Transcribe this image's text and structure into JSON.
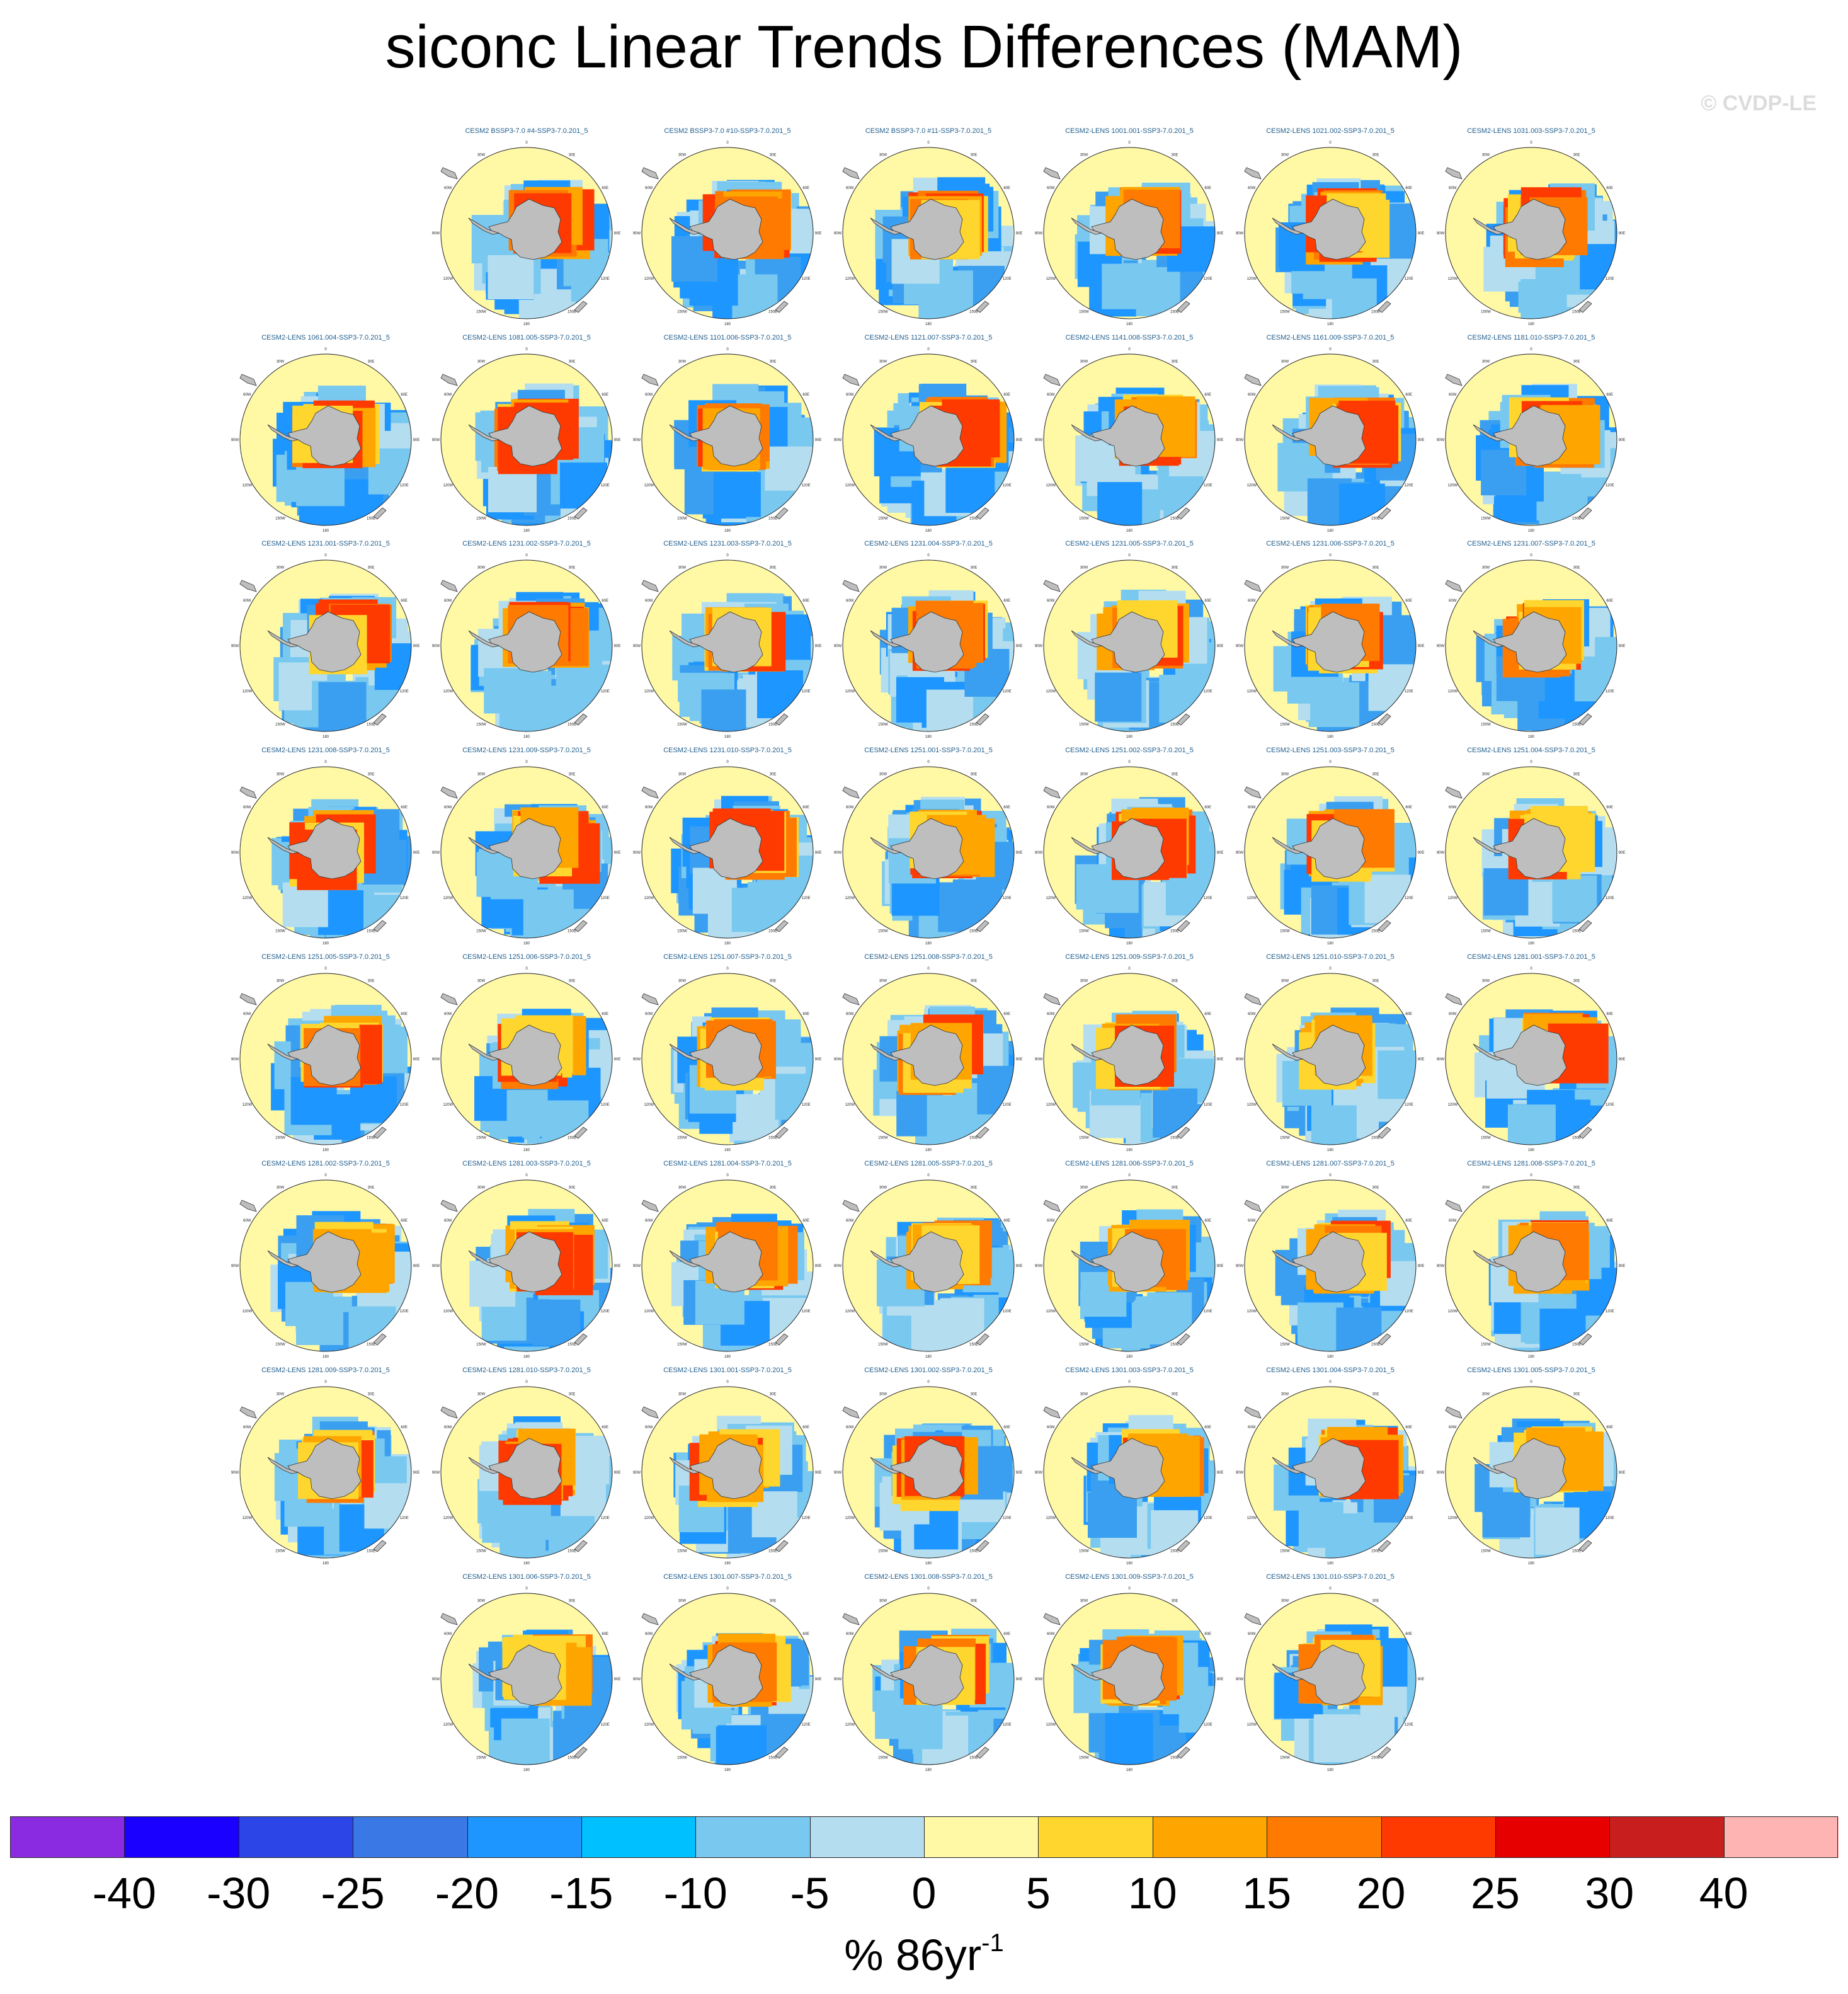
{
  "title": "siconc Linear Trends Differences (MAM)",
  "watermark": "© CVDP-LE",
  "map": {
    "projection": "south-polar-stereographic",
    "ocean_color": "#fff9a6",
    "land_color": "#bebebe",
    "lon_labels": [
      "0",
      "30E",
      "60E",
      "90E",
      "120E",
      "150E",
      "180",
      "150W",
      "120W",
      "90W",
      "60W",
      "30W"
    ]
  },
  "panels": [
    {
      "label": "CESM2 BSSP3-7.0 #4-SSP3-7.0.201_5",
      "row": 0,
      "col": 1
    },
    {
      "label": "CESM2 BSSP3-7.0 #10-SSP3-7.0.201_5",
      "row": 0,
      "col": 2
    },
    {
      "label": "CESM2 BSSP3-7.0 #11-SSP3-7.0.201_5",
      "row": 0,
      "col": 3
    },
    {
      "label": "CESM2-LENS 1001.001-SSP3-7.0.201_5",
      "row": 0,
      "col": 4
    },
    {
      "label": "CESM2-LENS 1021.002-SSP3-7.0.201_5",
      "row": 0,
      "col": 5
    },
    {
      "label": "CESM2-LENS 1031.003-SSP3-7.0.201_5",
      "row": 0,
      "col": 6
    },
    {
      "label": "CESM2-LENS 1061.004-SSP3-7.0.201_5",
      "row": 1,
      "col": 0
    },
    {
      "label": "CESM2-LENS 1081.005-SSP3-7.0.201_5",
      "row": 1,
      "col": 1
    },
    {
      "label": "CESM2-LENS 1101.006-SSP3-7.0.201_5",
      "row": 1,
      "col": 2
    },
    {
      "label": "CESM2-LENS 1121.007-SSP3-7.0.201_5",
      "row": 1,
      "col": 3
    },
    {
      "label": "CESM2-LENS 1141.008-SSP3-7.0.201_5",
      "row": 1,
      "col": 4
    },
    {
      "label": "CESM2-LENS 1161.009-SSP3-7.0.201_5",
      "row": 1,
      "col": 5
    },
    {
      "label": "CESM2-LENS 1181.010-SSP3-7.0.201_5",
      "row": 1,
      "col": 6
    },
    {
      "label": "CESM2-LENS 1231.001-SSP3-7.0.201_5",
      "row": 2,
      "col": 0
    },
    {
      "label": "CESM2-LENS 1231.002-SSP3-7.0.201_5",
      "row": 2,
      "col": 1
    },
    {
      "label": "CESM2-LENS 1231.003-SSP3-7.0.201_5",
      "row": 2,
      "col": 2
    },
    {
      "label": "CESM2-LENS 1231.004-SSP3-7.0.201_5",
      "row": 2,
      "col": 3
    },
    {
      "label": "CESM2-LENS 1231.005-SSP3-7.0.201_5",
      "row": 2,
      "col": 4
    },
    {
      "label": "CESM2-LENS 1231.006-SSP3-7.0.201_5",
      "row": 2,
      "col": 5
    },
    {
      "label": "CESM2-LENS 1231.007-SSP3-7.0.201_5",
      "row": 2,
      "col": 6
    },
    {
      "label": "CESM2-LENS 1231.008-SSP3-7.0.201_5",
      "row": 3,
      "col": 0
    },
    {
      "label": "CESM2-LENS 1231.009-SSP3-7.0.201_5",
      "row": 3,
      "col": 1
    },
    {
      "label": "CESM2-LENS 1231.010-SSP3-7.0.201_5",
      "row": 3,
      "col": 2
    },
    {
      "label": "CESM2-LENS 1251.001-SSP3-7.0.201_5",
      "row": 3,
      "col": 3
    },
    {
      "label": "CESM2-LENS 1251.002-SSP3-7.0.201_5",
      "row": 3,
      "col": 4
    },
    {
      "label": "CESM2-LENS 1251.003-SSP3-7.0.201_5",
      "row": 3,
      "col": 5
    },
    {
      "label": "CESM2-LENS 1251.004-SSP3-7.0.201_5",
      "row": 3,
      "col": 6
    },
    {
      "label": "CESM2-LENS 1251.005-SSP3-7.0.201_5",
      "row": 4,
      "col": 0
    },
    {
      "label": "CESM2-LENS 1251.006-SSP3-7.0.201_5",
      "row": 4,
      "col": 1
    },
    {
      "label": "CESM2-LENS 1251.007-SSP3-7.0.201_5",
      "row": 4,
      "col": 2
    },
    {
      "label": "CESM2-LENS 1251.008-SSP3-7.0.201_5",
      "row": 4,
      "col": 3
    },
    {
      "label": "CESM2-LENS 1251.009-SSP3-7.0.201_5",
      "row": 4,
      "col": 4
    },
    {
      "label": "CESM2-LENS 1251.010-SSP3-7.0.201_5",
      "row": 4,
      "col": 5
    },
    {
      "label": "CESM2-LENS 1281.001-SSP3-7.0.201_5",
      "row": 4,
      "col": 6
    },
    {
      "label": "CESM2-LENS 1281.002-SSP3-7.0.201_5",
      "row": 5,
      "col": 0
    },
    {
      "label": "CESM2-LENS 1281.003-SSP3-7.0.201_5",
      "row": 5,
      "col": 1
    },
    {
      "label": "CESM2-LENS 1281.004-SSP3-7.0.201_5",
      "row": 5,
      "col": 2
    },
    {
      "label": "CESM2-LENS 1281.005-SSP3-7.0.201_5",
      "row": 5,
      "col": 3
    },
    {
      "label": "CESM2-LENS 1281.006-SSP3-7.0.201_5",
      "row": 5,
      "col": 4
    },
    {
      "label": "CESM2-LENS 1281.007-SSP3-7.0.201_5",
      "row": 5,
      "col": 5
    },
    {
      "label": "CESM2-LENS 1281.008-SSP3-7.0.201_5",
      "row": 5,
      "col": 6
    },
    {
      "label": "CESM2-LENS 1281.009-SSP3-7.0.201_5",
      "row": 6,
      "col": 0
    },
    {
      "label": "CESM2-LENS 1281.010-SSP3-7.0.201_5",
      "row": 6,
      "col": 1
    },
    {
      "label": "CESM2-LENS 1301.001-SSP3-7.0.201_5",
      "row": 6,
      "col": 2
    },
    {
      "label": "CESM2-LENS 1301.002-SSP3-7.0.201_5",
      "row": 6,
      "col": 3
    },
    {
      "label": "CESM2-LENS 1301.003-SSP3-7.0.201_5",
      "row": 6,
      "col": 4
    },
    {
      "label": "CESM2-LENS 1301.004-SSP3-7.0.201_5",
      "row": 6,
      "col": 5
    },
    {
      "label": "CESM2-LENS 1301.005-SSP3-7.0.201_5",
      "row": 6,
      "col": 6
    },
    {
      "label": "CESM2-LENS 1301.006-SSP3-7.0.201_5",
      "row": 7,
      "col": 1
    },
    {
      "label": "CESM2-LENS 1301.007-SSP3-7.0.201_5",
      "row": 7,
      "col": 2
    },
    {
      "label": "CESM2-LENS 1301.008-SSP3-7.0.201_5",
      "row": 7,
      "col": 3
    },
    {
      "label": "CESM2-LENS 1301.009-SSP3-7.0.201_5",
      "row": 7,
      "col": 4
    },
    {
      "label": "CESM2-LENS 1301.010-SSP3-7.0.201_5",
      "row": 7,
      "col": 5
    }
  ],
  "colorbar": {
    "colors": [
      "#8a2be2",
      "#1a00ff",
      "#2b45e6",
      "#3a78e6",
      "#1e96ff",
      "#00c0ff",
      "#78c8f0",
      "#b4def0",
      "#fff9a6",
      "#ffd62e",
      "#ffa500",
      "#ff7a00",
      "#ff3a00",
      "#e60000",
      "#c81e1e",
      "#ffb4b4"
    ],
    "ticks": [
      "-40",
      "-30",
      "-25",
      "-20",
      "-15",
      "-10",
      "-5",
      "0",
      "5",
      "10",
      "15",
      "20",
      "25",
      "30",
      "40"
    ]
  },
  "units": {
    "text": "% 86yr",
    "exponent": "-1"
  }
}
